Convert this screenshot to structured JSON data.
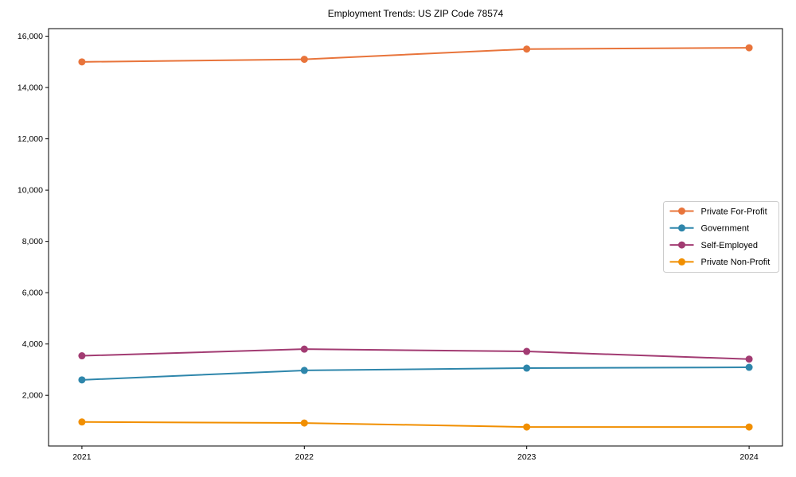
{
  "chart_data": {
    "type": "line",
    "title": "Employment Trends: US ZIP Code 78574",
    "xlabel": "",
    "ylabel": "",
    "x": [
      2021,
      2022,
      2023,
      2024
    ],
    "x_tick_labels": [
      "2021",
      "2022",
      "2023",
      "2024"
    ],
    "series": [
      {
        "name": "Private For-Profit",
        "color": "#E8743B",
        "values": [
          15000,
          15100,
          15500,
          15550
        ]
      },
      {
        "name": "Government",
        "color": "#2E86AB",
        "values": [
          2600,
          2970,
          3060,
          3090
        ]
      },
      {
        "name": "Self-Employed",
        "color": "#A23B72",
        "values": [
          3540,
          3800,
          3710,
          3410
        ]
      },
      {
        "name": "Private Non-Profit",
        "color": "#F18F01",
        "values": [
          960,
          920,
          765,
          765
        ]
      }
    ],
    "yticks": [
      2000,
      4000,
      6000,
      8000,
      10000,
      12000,
      14000,
      16000
    ],
    "ytick_labels": [
      "2,000",
      "4,000",
      "6,000",
      "8,000",
      "10,000",
      "12,000",
      "14,000",
      "16,000"
    ],
    "ylim": [
      23,
      16297
    ],
    "xlim": [
      2020.85,
      2024.15
    ],
    "grid": false,
    "legend_position": "center-right",
    "marker": "circle",
    "axis_color": "#000000",
    "legend_border_color": "#cccccc",
    "background_color": "#ffffff"
  }
}
